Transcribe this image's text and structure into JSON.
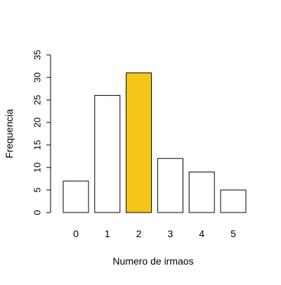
{
  "chart_data": {
    "type": "bar",
    "title": "",
    "xlabel": "Numero de irmaos",
    "ylabel": "Frequencia",
    "categories": [
      "0",
      "1",
      "2",
      "3",
      "4",
      "5"
    ],
    "values": [
      7,
      26,
      31,
      12,
      9,
      5
    ],
    "ylim": [
      0,
      35
    ],
    "yticks": [
      "0",
      "5",
      "10",
      "15",
      "20",
      "25",
      "30",
      "35"
    ],
    "highlight_index": 2,
    "colors": {
      "bar_fill": "#ffffff",
      "highlight_fill": "#f5c518",
      "bar_stroke": "#000000"
    },
    "grid": false,
    "legend": "none"
  }
}
